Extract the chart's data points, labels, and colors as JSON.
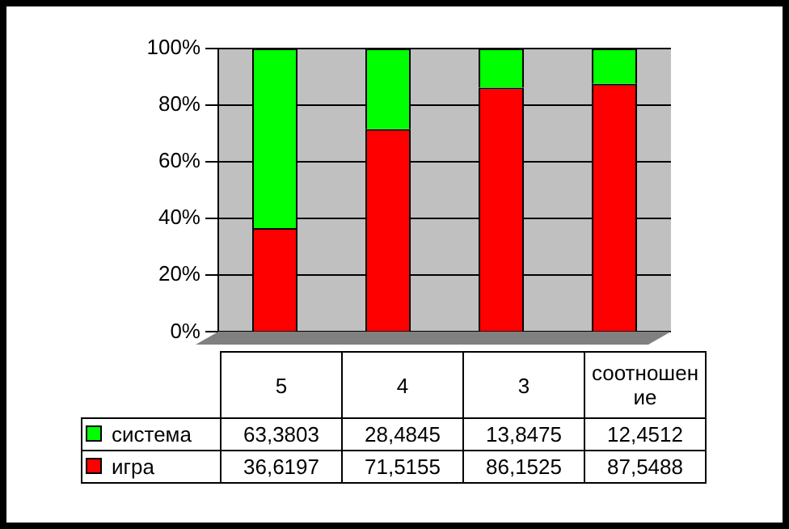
{
  "chart_data": {
    "type": "bar",
    "stacked": true,
    "categories": [
      "5",
      "4",
      "3",
      "соотношение"
    ],
    "series": [
      {
        "name": "игра",
        "color": "#ff0000",
        "values": [
          36.6197,
          71.5155,
          86.1525,
          87.5488
        ],
        "value_labels": [
          "36,6197",
          "71,5155",
          "86,1525",
          "87,5488"
        ]
      },
      {
        "name": "система",
        "color": "#00ff00",
        "values": [
          63.3803,
          28.4845,
          13.8475,
          12.4512
        ],
        "value_labels": [
          "63,3803",
          "28,4845",
          "13,8475",
          "12,4512"
        ]
      }
    ],
    "ylim": [
      0,
      100
    ],
    "yticks": [
      {
        "value": 0,
        "label": "0%"
      },
      {
        "value": 20,
        "label": "20%"
      },
      {
        "value": 40,
        "label": "40%"
      },
      {
        "value": 60,
        "label": "60%"
      },
      {
        "value": 80,
        "label": "80%"
      },
      {
        "value": 100,
        "label": "100%"
      }
    ],
    "grid": "y",
    "legend": "bottom"
  }
}
